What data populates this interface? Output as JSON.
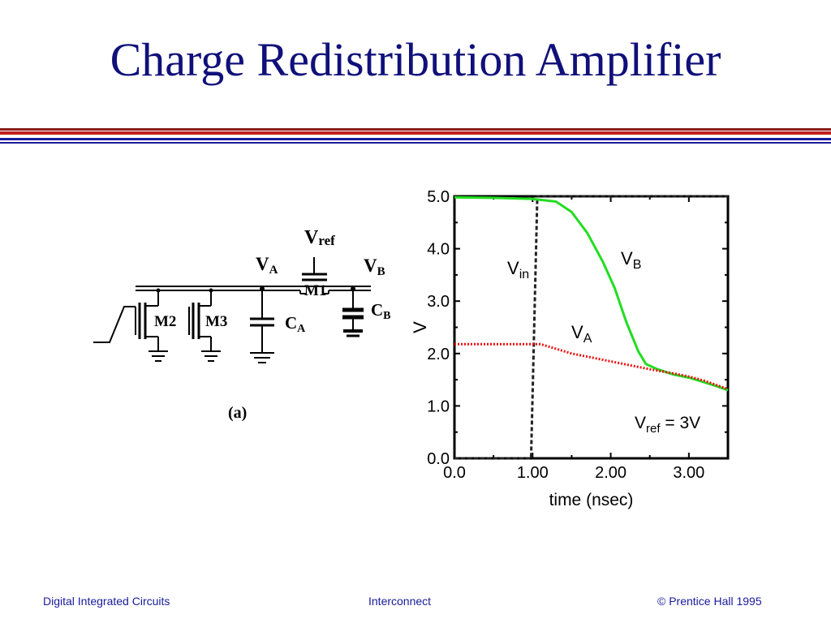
{
  "slide": {
    "title": "Charge Redistribution Amplifier"
  },
  "circuit": {
    "labels": {
      "vref_main": "V",
      "vref_sub": "ref",
      "va_main": "V",
      "va_sub": "A",
      "vb_main": "V",
      "vb_sub": "B",
      "m1": "M1",
      "m2": "M2",
      "m3": "M3",
      "ca_main": "C",
      "ca_sub": "A",
      "cb_main": "C",
      "cb_sub": "B",
      "caption": "(a)"
    }
  },
  "chart_data": {
    "type": "line",
    "title": "",
    "xlabel": "time (nsec)",
    "ylabel": "V",
    "xlim": [
      0,
      3.5
    ],
    "ylim": [
      0,
      5
    ],
    "x_ticks": [
      {
        "value": 0,
        "label": "0.0"
      },
      {
        "value": 1,
        "label": "1.00"
      },
      {
        "value": 2,
        "label": "2.00"
      },
      {
        "value": 3,
        "label": "3.00"
      }
    ],
    "y_ticks": [
      {
        "value": 0,
        "label": "0.0"
      },
      {
        "value": 1,
        "label": "1.0"
      },
      {
        "value": 2,
        "label": "2.0"
      },
      {
        "value": 3,
        "label": "3.0"
      },
      {
        "value": 4,
        "label": "4.0"
      },
      {
        "value": 5,
        "label": "5.0"
      }
    ],
    "series": [
      {
        "name": "V_in",
        "label_main": "V",
        "label_sub": "in",
        "color": "#222222",
        "dash": "dashed",
        "points": [
          [
            0,
            0
          ],
          [
            0.98,
            0
          ],
          [
            1.06,
            5.0
          ],
          [
            3.5,
            5.0
          ]
        ]
      },
      {
        "name": "V_B",
        "label_main": "V",
        "label_sub": "B",
        "color": "#22dd22",
        "dash": "solid",
        "points": [
          [
            0,
            4.98
          ],
          [
            0.5,
            4.97
          ],
          [
            1.0,
            4.95
          ],
          [
            1.3,
            4.9
          ],
          [
            1.5,
            4.7
          ],
          [
            1.7,
            4.3
          ],
          [
            1.9,
            3.75
          ],
          [
            2.05,
            3.25
          ],
          [
            2.2,
            2.6
          ],
          [
            2.35,
            2.05
          ],
          [
            2.45,
            1.8
          ],
          [
            2.6,
            1.7
          ],
          [
            2.8,
            1.6
          ],
          [
            3.0,
            1.54
          ],
          [
            3.2,
            1.45
          ],
          [
            3.35,
            1.38
          ],
          [
            3.5,
            1.3
          ]
        ]
      },
      {
        "name": "V_A",
        "label_main": "V",
        "label_sub": "A",
        "color": "#ee1111",
        "dash": "dotted",
        "points": [
          [
            0,
            2.18
          ],
          [
            0.5,
            2.18
          ],
          [
            1.0,
            2.18
          ],
          [
            1.1,
            2.18
          ],
          [
            1.5,
            2.0
          ],
          [
            2.0,
            1.85
          ],
          [
            2.5,
            1.7
          ],
          [
            2.8,
            1.62
          ],
          [
            3.0,
            1.56
          ],
          [
            3.2,
            1.48
          ],
          [
            3.35,
            1.4
          ],
          [
            3.5,
            1.32
          ]
        ]
      }
    ],
    "annotation": {
      "main": "V",
      "sub": "ref",
      "text": " = 3V"
    }
  },
  "footer": {
    "left": "Digital Integrated Circuits",
    "center": "Interconnect",
    "right": "© Prentice Hall 1995"
  }
}
